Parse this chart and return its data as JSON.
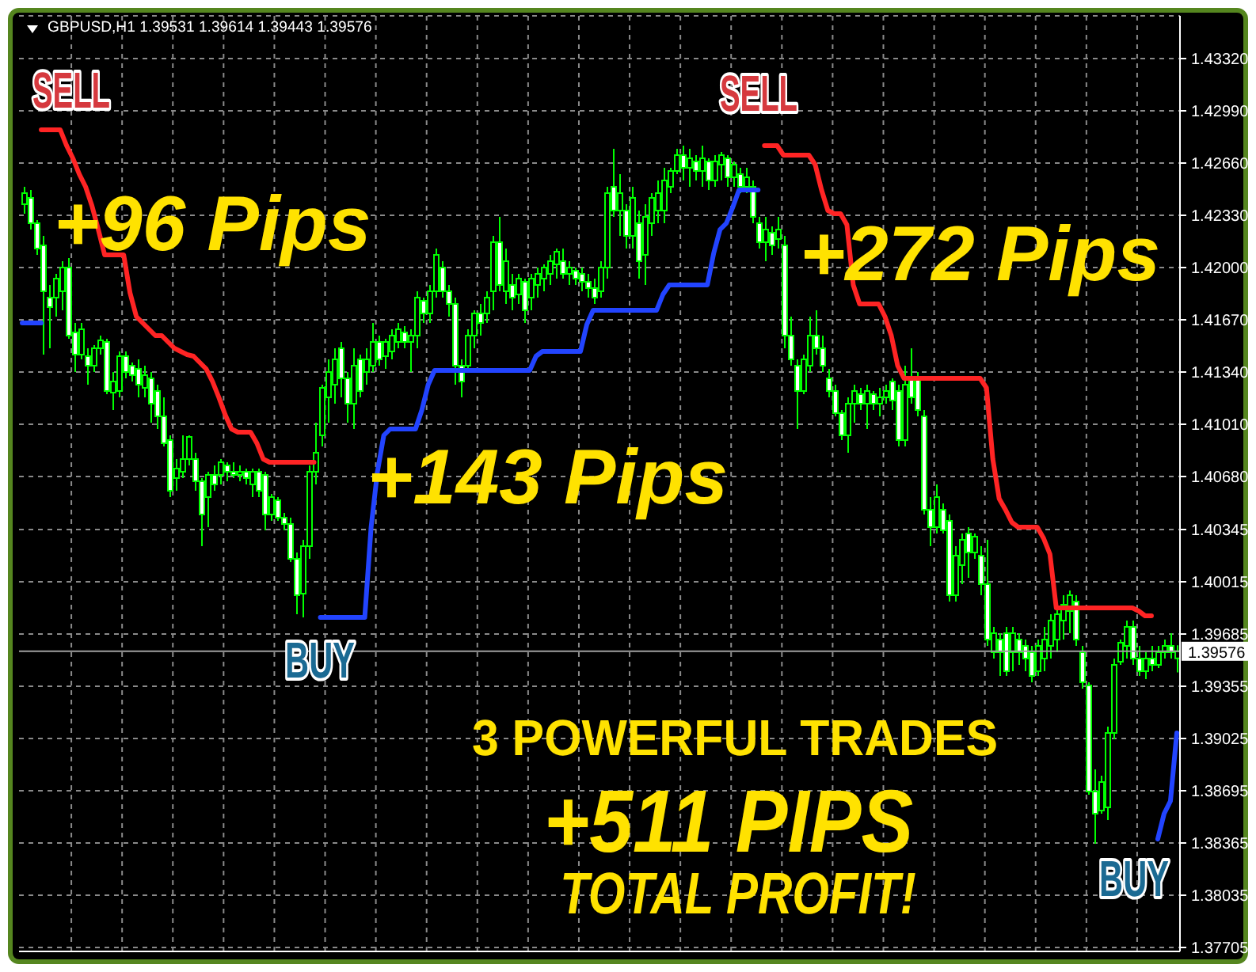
{
  "chart_data": {
    "type": "candlestick",
    "title": "GBPUSD,H1 1.39531 1.39614 1.39443 1.39576",
    "color": "#00ff00",
    "categories": [
      null,
      null,
      null,
      null,
      null,
      null,
      null,
      null,
      null,
      null,
      null,
      null,
      null,
      null,
      null,
      null,
      null,
      null,
      null,
      null,
      null,
      null,
      null,
      null,
      null,
      null,
      null,
      null,
      null,
      null,
      null,
      null,
      null,
      null,
      null,
      null,
      null,
      null,
      null,
      null,
      null,
      null,
      null,
      null,
      null,
      null,
      null,
      null,
      null,
      null,
      null,
      null,
      null,
      null,
      null,
      null,
      null,
      null,
      null,
      null,
      null,
      null,
      null,
      null,
      null,
      null,
      null,
      null,
      null,
      null,
      null,
      null,
      null,
      null,
      null,
      null,
      null,
      null,
      null,
      null,
      null,
      null,
      null,
      null,
      null,
      null,
      null,
      null,
      null,
      null,
      null,
      null,
      null,
      null,
      null,
      null,
      null,
      null,
      null,
      null,
      null,
      null,
      null,
      null,
      null,
      null,
      null,
      null,
      null,
      null,
      null,
      null,
      null,
      null,
      null,
      null,
      null,
      null,
      null,
      null,
      null,
      null,
      null,
      null,
      null,
      null,
      null,
      null,
      null,
      null,
      null,
      null,
      null,
      null,
      null,
      null,
      null,
      null,
      null,
      null,
      null,
      null,
      null,
      null,
      null,
      null,
      null,
      null,
      null,
      null,
      null,
      null,
      null,
      null,
      null,
      null,
      null,
      null,
      null,
      null,
      null,
      null,
      null,
      null,
      null,
      null,
      null,
      null,
      null,
      null,
      null,
      null,
      null,
      null,
      null,
      null,
      null,
      null,
      null,
      null,
      null,
      null,
      null
    ],
    "ohlc": [
      [
        1.424,
        1.4251,
        1.4234,
        1.4247
      ],
      [
        1.4244,
        1.4249,
        1.4224,
        1.4228
      ],
      [
        1.4228,
        1.423,
        1.4208,
        1.4212
      ],
      [
        1.4214,
        1.422,
        1.4145,
        1.4185
      ],
      [
        1.4181,
        1.4189,
        1.4149,
        1.4175
      ],
      [
        1.4181,
        1.4196,
        1.4169,
        1.4193
      ],
      [
        1.4185,
        1.4204,
        1.4173,
        1.42
      ],
      [
        1.42,
        1.4206,
        1.4155,
        1.4157
      ],
      [
        1.4159,
        1.4165,
        1.4134,
        1.4145
      ],
      [
        1.4145,
        1.4165,
        1.4142,
        1.4161
      ],
      [
        1.4144,
        1.4149,
        1.4126,
        1.4138
      ],
      [
        1.4138,
        1.4151,
        1.4134,
        1.4149
      ],
      [
        1.4149,
        1.4157,
        1.4145,
        1.4154
      ],
      [
        1.4153,
        1.4155,
        1.412,
        1.4122
      ],
      [
        1.4121,
        1.4134,
        1.411,
        1.4128
      ],
      [
        1.4122,
        1.4147,
        1.4118,
        1.4144
      ],
      [
        1.4144,
        1.4147,
        1.413,
        1.4134
      ],
      [
        1.4138,
        1.414,
        1.4128,
        1.4132
      ],
      [
        1.4136,
        1.4142,
        1.4118,
        1.4126
      ],
      [
        1.4124,
        1.4138,
        1.4118,
        1.4132
      ],
      [
        1.413,
        1.4134,
        1.4102,
        1.4114
      ],
      [
        1.4122,
        1.4126,
        1.4098,
        1.4106
      ],
      [
        1.4106,
        1.4118,
        1.4087,
        1.4089
      ],
      [
        1.4091,
        1.4094,
        1.4055,
        1.4059
      ],
      [
        1.4067,
        1.4079,
        1.4059,
        1.4073
      ],
      [
        1.4071,
        1.4094,
        1.4067,
        1.4079
      ],
      [
        1.4079,
        1.4094,
        1.4075,
        1.4093
      ],
      [
        1.4079,
        1.4083,
        1.4059,
        1.4065
      ],
      [
        1.4065,
        1.4067,
        1.4024,
        1.4044
      ],
      [
        1.4055,
        1.4071,
        1.4036,
        1.4069
      ],
      [
        1.4069,
        1.4075,
        1.4059,
        1.4063
      ],
      [
        1.4069,
        1.4079,
        1.4063,
        1.4077
      ],
      [
        1.4075,
        1.4077,
        1.4065,
        1.4071
      ],
      [
        1.4071,
        1.4077,
        1.4067,
        1.4069
      ],
      [
        1.4069,
        1.4075,
        1.4065,
        1.4071
      ],
      [
        1.4071,
        1.4073,
        1.4063,
        1.4067
      ],
      [
        1.4063,
        1.4073,
        1.4055,
        1.4071
      ],
      [
        1.4071,
        1.4073,
        1.4055,
        1.4059
      ],
      [
        1.4069,
        1.4071,
        1.4034,
        1.4044
      ],
      [
        1.4044,
        1.4057,
        1.404,
        1.4055
      ],
      [
        1.4053,
        1.4055,
        1.404,
        1.4042
      ],
      [
        1.4042,
        1.4045,
        1.4034,
        1.4038
      ],
      [
        1.4038,
        1.4042,
        1.4014,
        1.4016
      ],
      [
        1.4016,
        1.402,
        1.3981,
        1.3993
      ],
      [
        1.3994,
        1.4028,
        1.3979,
        1.4024
      ],
      [
        1.4024,
        1.4075,
        1.4016,
        1.4071
      ],
      [
        1.4071,
        1.4102,
        1.4063,
        1.4083
      ],
      [
        1.4094,
        1.4126,
        1.4087,
        1.4124
      ],
      [
        1.4118,
        1.4142,
        1.4102,
        1.4134
      ],
      [
        1.4126,
        1.4149,
        1.4114,
        1.4142
      ],
      [
        1.4149,
        1.4153,
        1.4118,
        1.413
      ],
      [
        1.413,
        1.4134,
        1.4102,
        1.4114
      ],
      [
        1.4114,
        1.4149,
        1.4098,
        1.4138
      ],
      [
        1.4142,
        1.4145,
        1.4118,
        1.4122
      ],
      [
        1.4134,
        1.4149,
        1.4126,
        1.4142
      ],
      [
        1.4138,
        1.4165,
        1.4134,
        1.4153
      ],
      [
        1.4153,
        1.4157,
        1.4138,
        1.4142
      ],
      [
        1.4144,
        1.4155,
        1.4136,
        1.4153
      ],
      [
        1.4147,
        1.4161,
        1.4142,
        1.4157
      ],
      [
        1.4153,
        1.4165,
        1.4149,
        1.4161
      ],
      [
        1.4159,
        1.4163,
        1.4149,
        1.4153
      ],
      [
        1.4153,
        1.4161,
        1.4134,
        1.4157
      ],
      [
        1.4157,
        1.4185,
        1.4149,
        1.4181
      ],
      [
        1.4179,
        1.4181,
        1.4165,
        1.4171
      ],
      [
        1.4171,
        1.4189,
        1.4165,
        1.4185
      ],
      [
        1.4185,
        1.4212,
        1.4181,
        1.4208
      ],
      [
        1.42,
        1.4204,
        1.4181,
        1.4185
      ],
      [
        1.4185,
        1.4189,
        1.4169,
        1.4177
      ],
      [
        1.4177,
        1.4181,
        1.4126,
        1.4138
      ],
      [
        1.4138,
        1.4142,
        1.4118,
        1.4128
      ],
      [
        1.4138,
        1.4161,
        1.4134,
        1.4157
      ],
      [
        1.4157,
        1.4173,
        1.4149,
        1.4171
      ],
      [
        1.4171,
        1.4177,
        1.4157,
        1.4165
      ],
      [
        1.4171,
        1.4185,
        1.4165,
        1.4181
      ],
      [
        1.4185,
        1.422,
        1.4173,
        1.4216
      ],
      [
        1.4216,
        1.4232,
        1.4185,
        1.4189
      ],
      [
        1.4185,
        1.4212,
        1.4177,
        1.4204
      ],
      [
        1.4189,
        1.4196,
        1.4173,
        1.4181
      ],
      [
        1.4183,
        1.4196,
        1.4177,
        1.4193
      ],
      [
        1.4191,
        1.4193,
        1.4165,
        1.4173
      ],
      [
        1.4181,
        1.4196,
        1.4173,
        1.4193
      ],
      [
        1.4189,
        1.42,
        1.4181,
        1.4196
      ],
      [
        1.4193,
        1.4202,
        1.4185,
        1.42
      ],
      [
        1.4196,
        1.4208,
        1.4189,
        1.4204
      ],
      [
        1.4202,
        1.4212,
        1.4193,
        1.421
      ],
      [
        1.4204,
        1.4212,
        1.4193,
        1.4196
      ],
      [
        1.4196,
        1.4204,
        1.4189,
        1.42
      ],
      [
        1.4198,
        1.42,
        1.4189,
        1.4193
      ],
      [
        1.4196,
        1.42,
        1.4185,
        1.4191
      ],
      [
        1.4191,
        1.4196,
        1.4181,
        1.4187
      ],
      [
        1.4187,
        1.4193,
        1.4177,
        1.4181
      ],
      [
        1.4185,
        1.4204,
        1.4181,
        1.42
      ],
      [
        1.42,
        1.4251,
        1.4193,
        1.4247
      ],
      [
        1.4251,
        1.4275,
        1.4232,
        1.4236
      ],
      [
        1.4236,
        1.4259,
        1.422,
        1.4247
      ],
      [
        1.4236,
        1.424,
        1.4212,
        1.422
      ],
      [
        1.422,
        1.4251,
        1.4212,
        1.4244
      ],
      [
        1.4228,
        1.4236,
        1.4193,
        1.4204
      ],
      [
        1.4208,
        1.424,
        1.4189,
        1.4232
      ],
      [
        1.4228,
        1.4247,
        1.422,
        1.4244
      ],
      [
        1.4236,
        1.4255,
        1.4228,
        1.4247
      ],
      [
        1.4236,
        1.4263,
        1.4228,
        1.4255
      ],
      [
        1.4251,
        1.4263,
        1.4247,
        1.4261
      ],
      [
        1.4261,
        1.4275,
        1.4259,
        1.4271
      ],
      [
        1.4271,
        1.4277,
        1.4255,
        1.4263
      ],
      [
        1.4263,
        1.4275,
        1.4251,
        1.4269
      ],
      [
        1.4267,
        1.4271,
        1.4255,
        1.4261
      ],
      [
        1.4261,
        1.4277,
        1.4251,
        1.4269
      ],
      [
        1.4267,
        1.4269,
        1.4249,
        1.4255
      ],
      [
        1.4255,
        1.4271,
        1.4251,
        1.4267
      ],
      [
        1.4265,
        1.4273,
        1.4255,
        1.4271
      ],
      [
        1.4269,
        1.4271,
        1.4251,
        1.4257
      ],
      [
        1.4257,
        1.4267,
        1.4251,
        1.4265
      ],
      [
        1.4259,
        1.4263,
        1.4247,
        1.4251
      ],
      [
        1.4251,
        1.4263,
        1.4247,
        1.4257
      ],
      [
        1.4251,
        1.4255,
        1.4228,
        1.4232
      ],
      [
        1.4228,
        1.4232,
        1.4212,
        1.4216
      ],
      [
        1.4216,
        1.4232,
        1.4204,
        1.4224
      ],
      [
        1.4222,
        1.4226,
        1.4208,
        1.4214
      ],
      [
        1.4218,
        1.4232,
        1.4212,
        1.4224
      ],
      [
        1.4214,
        1.422,
        1.4149,
        1.4157
      ],
      [
        1.4157,
        1.4169,
        1.4138,
        1.4142
      ],
      [
        1.4138,
        1.4142,
        1.4098,
        1.4122
      ],
      [
        1.4122,
        1.4145,
        1.412,
        1.4142
      ],
      [
        1.4138,
        1.4169,
        1.4134,
        1.4157
      ],
      [
        1.4157,
        1.4173,
        1.4145,
        1.4149
      ],
      [
        1.4149,
        1.4157,
        1.4134,
        1.4138
      ],
      [
        1.413,
        1.4136,
        1.4118,
        1.4122
      ],
      [
        1.4122,
        1.4126,
        1.4106,
        1.4108
      ],
      [
        1.4108,
        1.411,
        1.4091,
        1.4094
      ],
      [
        1.4094,
        1.4118,
        1.4083,
        1.4114
      ],
      [
        1.4114,
        1.4126,
        1.4102,
        1.4122
      ],
      [
        1.412,
        1.4124,
        1.411,
        1.4114
      ],
      [
        1.4114,
        1.4126,
        1.4098,
        1.4122
      ],
      [
        1.412,
        1.4122,
        1.411,
        1.4114
      ],
      [
        1.4114,
        1.4124,
        1.4106,
        1.4118
      ],
      [
        1.4118,
        1.4126,
        1.4114,
        1.4122
      ],
      [
        1.4128,
        1.413,
        1.411,
        1.4116
      ],
      [
        1.4122,
        1.4126,
        1.4087,
        1.4091
      ],
      [
        1.4091,
        1.4138,
        1.4087,
        1.4126
      ],
      [
        1.413,
        1.4149,
        1.4114,
        1.4118
      ],
      [
        1.413,
        1.4134,
        1.4106,
        1.411
      ],
      [
        1.4106,
        1.411,
        1.4044,
        1.4047
      ],
      [
        1.4047,
        1.4055,
        1.4024,
        1.4036
      ],
      [
        1.4036,
        1.4063,
        1.4032,
        1.4055
      ],
      [
        1.4047,
        1.4051,
        1.4032,
        1.4034
      ],
      [
        1.404,
        1.4044,
        1.3989,
        1.3993
      ],
      [
        1.3993,
        1.4024,
        1.3989,
        1.4018
      ],
      [
        1.4012,
        1.4032,
        1.4,
        1.4028
      ],
      [
        1.4032,
        1.4036,
        1.4004,
        1.402
      ],
      [
        1.402,
        1.4032,
        1.4016,
        1.403
      ],
      [
        1.4018,
        1.4024,
        1.3993,
        1.4
      ],
      [
        1.4,
        1.4028,
        1.3961,
        1.3965
      ],
      [
        1.3957,
        1.3973,
        1.3953,
        1.3969
      ],
      [
        1.3965,
        1.3969,
        1.3942,
        1.3957
      ],
      [
        1.3969,
        1.3973,
        1.3942,
        1.3945
      ],
      [
        1.3957,
        1.3973,
        1.3945,
        1.3969
      ],
      [
        1.3965,
        1.3969,
        1.3949,
        1.3957
      ],
      [
        1.3961,
        1.3965,
        1.3945,
        1.3953
      ],
      [
        1.3957,
        1.3961,
        1.3938,
        1.3942
      ],
      [
        1.3945,
        1.3965,
        1.3942,
        1.3961
      ],
      [
        1.3953,
        1.3973,
        1.3945,
        1.3965
      ],
      [
        1.3961,
        1.3981,
        1.3953,
        1.3977
      ],
      [
        1.3965,
        1.3985,
        1.3957,
        1.3981
      ],
      [
        1.3977,
        1.3993,
        1.3965,
        1.3987
      ],
      [
        1.3983,
        1.3996,
        1.3969,
        1.3993
      ],
      [
        1.3989,
        1.3993,
        1.3961,
        1.3965
      ],
      [
        1.3957,
        1.3961,
        1.3934,
        1.3938
      ],
      [
        1.3936,
        1.3938,
        1.3867,
        1.3869
      ],
      [
        1.3869,
        1.3883,
        1.3836,
        1.3855
      ],
      [
        1.3857,
        1.3879,
        1.3855,
        1.3875
      ],
      [
        1.3859,
        1.391,
        1.3851,
        1.3906
      ],
      [
        1.3906,
        1.3953,
        1.3902,
        1.3949
      ],
      [
        1.3951,
        1.3965,
        1.3949,
        1.3963
      ],
      [
        1.3961,
        1.3977,
        1.3953,
        1.3973
      ],
      [
        1.3973,
        1.3977,
        1.3949,
        1.3953
      ],
      [
        1.3953,
        1.3961,
        1.3942,
        1.3945
      ],
      [
        1.3945,
        1.3957,
        1.394,
        1.3953
      ],
      [
        1.3953,
        1.3961,
        1.3945,
        1.3949
      ],
      [
        1.3949,
        1.3961,
        1.3947,
        1.3957
      ],
      [
        1.3957,
        1.3965,
        1.3953,
        1.3961
      ],
      [
        1.3961,
        1.3969,
        1.3953,
        1.3957
      ],
      [
        1.39531,
        1.39614,
        1.39443,
        1.39576
      ]
    ],
    "series": [
      {
        "type": "line",
        "color": "#ff2424",
        "values": [
          null,
          null,
          null,
          1.4287,
          1.4287,
          1.4287,
          1.4287,
          1.4277,
          1.4269,
          1.4259,
          1.4251,
          1.4239,
          1.4224,
          1.4208,
          1.4208,
          1.4208,
          1.4208,
          1.4184,
          1.4169,
          1.4165,
          1.4161,
          1.4157,
          1.4157,
          1.4153,
          1.4149,
          1.4147,
          1.4145,
          1.4144,
          1.414,
          1.4136,
          1.4128,
          1.4118,
          1.4107,
          1.4098,
          1.4096,
          1.4096,
          1.4096,
          1.4089,
          1.4079,
          1.4077,
          1.4077,
          1.4077,
          1.4077,
          1.4077,
          1.4077,
          1.4077,
          1.4077,
          null,
          null,
          null,
          null,
          null,
          null,
          null,
          null,
          null,
          null,
          null,
          null,
          null,
          null,
          null,
          null,
          null,
          null,
          null,
          null,
          null,
          null,
          null,
          null,
          null,
          null,
          null,
          null,
          null,
          null,
          null,
          null,
          null,
          null,
          null,
          null,
          null,
          null,
          null,
          null,
          null,
          null,
          null,
          null,
          null,
          null,
          null,
          null,
          null,
          null,
          null,
          null,
          null,
          null,
          null,
          null,
          null,
          null,
          null,
          null,
          null,
          null,
          null,
          null,
          null,
          null,
          null,
          null,
          null,
          null,
          1.4277,
          1.4277,
          1.4277,
          1.4271,
          1.4271,
          1.4271,
          1.4271,
          1.4271,
          1.4265,
          1.4249,
          1.4236,
          1.4234,
          1.4234,
          1.4227,
          1.4189,
          1.4177,
          1.4177,
          1.4177,
          1.4177,
          1.4169,
          1.4157,
          1.4138,
          1.413,
          1.413,
          1.413,
          1.413,
          1.413,
          1.413,
          1.413,
          1.413,
          1.413,
          1.413,
          1.413,
          1.413,
          1.413,
          1.4124,
          1.4079,
          1.4054,
          1.4047,
          1.4039,
          1.4036,
          1.4036,
          1.4036,
          1.4036,
          1.4029,
          1.4019,
          1.3985,
          1.3985,
          1.3985,
          1.3985,
          1.3985,
          1.3985,
          1.3985,
          1.3985,
          1.3985,
          1.3985,
          1.3985,
          1.3985,
          1.3985,
          1.3983,
          1.398,
          1.398,
          null,
          null,
          null,
          null
        ]
      },
      {
        "type": "line",
        "color": "#2244ff",
        "values": [
          1.4165,
          1.4165,
          1.4165,
          1.4165,
          null,
          null,
          null,
          null,
          null,
          null,
          null,
          null,
          null,
          null,
          null,
          null,
          null,
          null,
          null,
          null,
          null,
          null,
          null,
          null,
          null,
          null,
          null,
          null,
          null,
          null,
          null,
          null,
          null,
          null,
          null,
          null,
          null,
          null,
          null,
          null,
          null,
          null,
          null,
          null,
          null,
          null,
          null,
          1.3979,
          1.3979,
          1.3979,
          1.3979,
          1.3979,
          1.3979,
          1.3979,
          1.3979,
          1.4036,
          1.4071,
          1.4094,
          1.4098,
          1.4098,
          1.4098,
          1.4098,
          1.4098,
          1.411,
          1.4126,
          1.4135,
          1.4135,
          1.4135,
          1.4135,
          1.4135,
          1.4135,
          1.4135,
          1.4135,
          1.4135,
          1.4135,
          1.4135,
          1.4135,
          1.4135,
          1.4135,
          1.4135,
          1.4135,
          1.4144,
          1.4147,
          1.4147,
          1.4147,
          1.4147,
          1.4147,
          1.4147,
          1.4147,
          1.4164,
          1.4173,
          1.4173,
          1.4173,
          1.4173,
          1.4173,
          1.4173,
          1.4173,
          1.4173,
          1.4173,
          1.4173,
          1.4173,
          1.4183,
          1.4189,
          1.4189,
          1.4189,
          1.4189,
          1.4189,
          1.4189,
          1.4189,
          1.4209,
          1.4224,
          1.4228,
          1.4238,
          1.4249,
          1.4249,
          1.4249,
          1.4249,
          null,
          null,
          null,
          null,
          null,
          null,
          null,
          null,
          null,
          null,
          null,
          null,
          null,
          null,
          null,
          null,
          null,
          null,
          null,
          null,
          null,
          null,
          null,
          null,
          null,
          null,
          null,
          null,
          null,
          null,
          null,
          null,
          null,
          null,
          null,
          null,
          null,
          null,
          null,
          null,
          null,
          null,
          null,
          null,
          null,
          null,
          null,
          null,
          null,
          null,
          null,
          null,
          null,
          null,
          null,
          null,
          null,
          null,
          null,
          null,
          null,
          null,
          1.3839,
          1.3855,
          1.3863,
          1.3906
        ]
      }
    ],
    "ylim": [
      1.3768,
      1.4359
    ],
    "yticks": [
      {
        "value": 1.4332,
        "label": "1.43320"
      },
      {
        "value": 1.4299,
        "label": "1.42990"
      },
      {
        "value": 1.4266,
        "label": "1.42660"
      },
      {
        "value": 1.4233,
        "label": "1.42330"
      },
      {
        "value": 1.42,
        "label": "1.42000"
      },
      {
        "value": 1.4167,
        "label": "1.41670"
      },
      {
        "value": 1.4134,
        "label": "1.41340"
      },
      {
        "value": 1.4101,
        "label": "1.41010"
      },
      {
        "value": 1.4068,
        "label": "1.40680"
      },
      1.40345,
      1.40015,
      1.39685,
      1.39355,
      1.39025,
      1.38695,
      1.38365,
      1.38035,
      1.37705
    ],
    "ref_lines": [
      {
        "axis": "y",
        "value": 1.39576,
        "label": "1.39576",
        "color": "#a0a0a0"
      }
    ],
    "annotations": [
      "SELL",
      "+96 Pips",
      "BUY",
      "+143 Pips",
      "SELL",
      "+272 Pips",
      "BUY",
      "3 POWERFUL TRADES",
      "+511 PIPS",
      "TOTAL PROFIT!"
    ],
    "grid": true,
    "tick_labels": "y"
  }
}
